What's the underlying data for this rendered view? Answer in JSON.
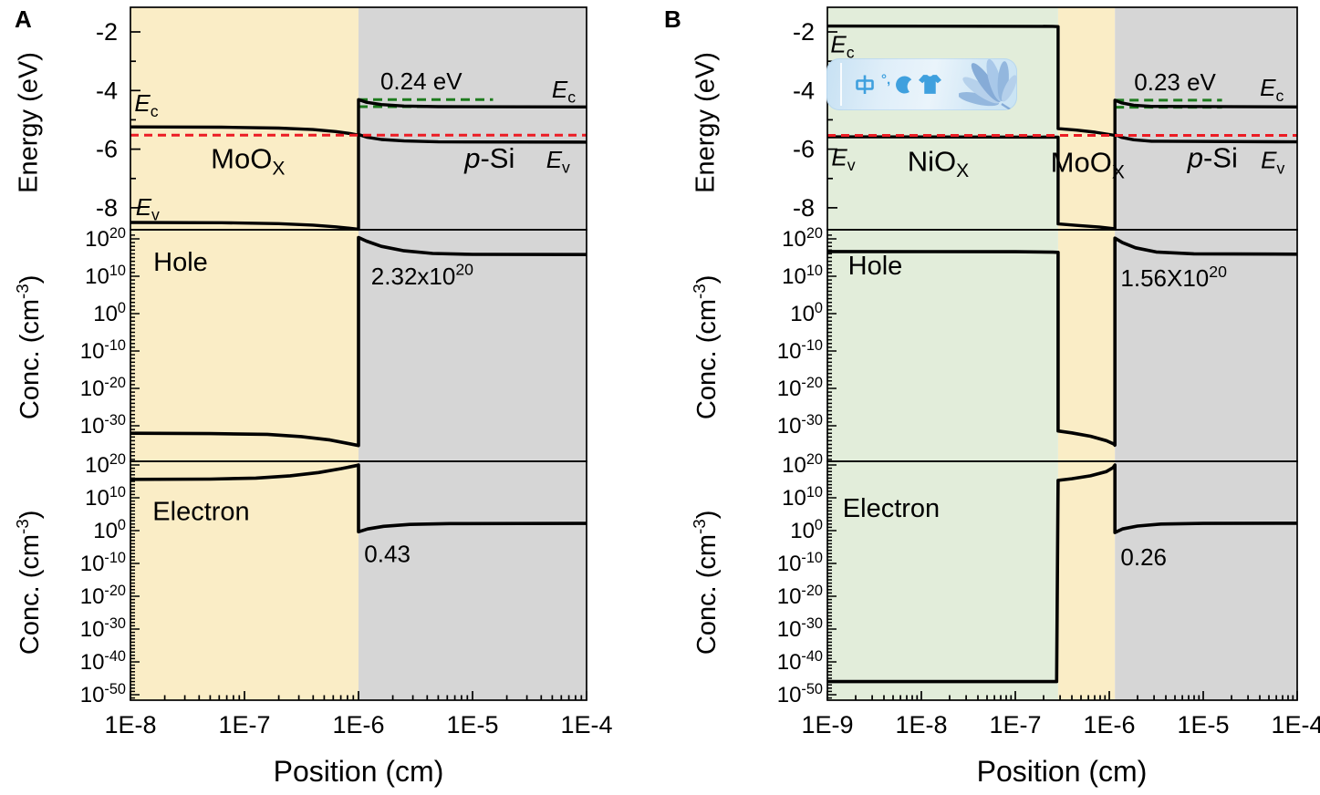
{
  "axis_titles": {
    "energy": "Energy (eV)",
    "conc_prefix": "Conc. (cm",
    "conc_exp": "-3",
    "conc_suffix": ")"
  },
  "watermark": {
    "small_text": "°,",
    "icons": [
      "chinese-translate-icon",
      "degree-comma",
      "crescent-moon-icon",
      "t-shirt-icon",
      "flower-image"
    ]
  },
  "chart_data": [
    {
      "panel_letter": "A",
      "type": "line",
      "xlabel": "Position (cm)",
      "x_tick_labels": [
        "1E-8",
        "1E-7",
        "1E-6",
        "1E-5",
        "1E-4"
      ],
      "x_log_range": [
        -8,
        -4
      ],
      "regions": [
        {
          "name": "MoOx",
          "color": "#FAEDC6",
          "x_log": [
            -8,
            -6
          ]
        },
        {
          "name": "p-Si",
          "color": "#D6D6D6",
          "x_log": [
            -6,
            -4
          ]
        }
      ],
      "energy": {
        "ylabel": "Energy (eV)",
        "y_ticks": [
          -2,
          -4,
          -6,
          -8
        ],
        "y_range": [
          -8.75,
          -1.16
        ],
        "fermi_level_eV": -5.52,
        "fermi_color": "#EC1C24",
        "barrier_color": "#1E7B1E",
        "barrier": {
          "label": "0.24 eV",
          "upper_eV": -4.31,
          "lower_eV": -4.55,
          "x_log": [
            -6,
            -4.82
          ],
          "label_pos": [
            -5.45,
            -3.68
          ]
        },
        "Ec": [
          [
            -8,
            -5.24
          ],
          [
            -7.2,
            -5.25
          ],
          [
            -6.7,
            -5.28
          ],
          [
            -6.4,
            -5.33
          ],
          [
            -6.2,
            -5.4
          ],
          [
            -6.07,
            -5.47
          ],
          [
            -6,
            -5.52
          ],
          [
            -6,
            -4.31
          ],
          [
            -5.93,
            -4.4
          ],
          [
            -5.8,
            -4.48
          ],
          [
            -5.6,
            -4.53
          ],
          [
            -5.3,
            -4.55
          ],
          [
            -4,
            -4.56
          ]
        ],
        "Ev": [
          [
            -8,
            -8.5
          ],
          [
            -7.2,
            -8.51
          ],
          [
            -6.7,
            -8.54
          ],
          [
            -6.4,
            -8.59
          ],
          [
            -6.2,
            -8.65
          ],
          [
            -6.07,
            -8.7
          ],
          [
            -6,
            -8.73
          ],
          [
            -6,
            -5.5
          ],
          [
            -5.93,
            -5.59
          ],
          [
            -5.8,
            -5.67
          ],
          [
            -5.6,
            -5.72
          ],
          [
            -5.3,
            -5.75
          ],
          [
            -4,
            -5.76
          ]
        ],
        "labels": [
          {
            "name": "ec-label-left",
            "parts": [
              {
                "t": "E",
                "i": 1
              },
              {
                "t": "c",
                "sub": 1
              }
            ],
            "pos": [
              -7.86,
              -4.43
            ],
            "size": 26
          },
          {
            "name": "ev-label-left",
            "parts": [
              {
                "t": "E",
                "i": 1
              },
              {
                "t": "v",
                "sub": 1
              }
            ],
            "pos": [
              -7.85,
              -7.97
            ],
            "size": 26
          },
          {
            "name": "region-label-moox",
            "parts": [
              {
                "t": "MoO"
              },
              {
                "t": "X",
                "sub": 1
              }
            ],
            "pos": [
              -6.97,
              -6.32
            ],
            "size": 31
          },
          {
            "name": "region-label-psi",
            "parts": [
              {
                "t": "p",
                "i": 1
              },
              {
                "t": "-Si"
              }
            ],
            "pos": [
              -4.85,
              -6.3
            ],
            "size": 31
          },
          {
            "name": "ev-label-right",
            "parts": [
              {
                "t": "E",
                "i": 1
              },
              {
                "t": "v",
                "sub": 1
              }
            ],
            "pos": [
              -4.25,
              -6.35
            ],
            "size": 26
          },
          {
            "name": "ec-label-right",
            "parts": [
              {
                "t": "E",
                "i": 1
              },
              {
                "t": "c",
                "sub": 1
              }
            ],
            "pos": [
              -4.2,
              -3.95
            ],
            "size": 26
          }
        ]
      },
      "hole": {
        "y_tick_exponents": [
          20,
          10,
          0,
          -10,
          -20,
          -30
        ],
        "y_log_range": [
          -39.5,
          22.4
        ],
        "interface_value": "2.32x10^20",
        "curve": [
          [
            -8,
            -32.0
          ],
          [
            -7.3,
            -32.1
          ],
          [
            -6.8,
            -32.3
          ],
          [
            -6.5,
            -32.9
          ],
          [
            -6.25,
            -33.8
          ],
          [
            -6.08,
            -34.8
          ],
          [
            -6,
            -35.3
          ],
          [
            -6,
            20.37
          ],
          [
            -5.93,
            19.4
          ],
          [
            -5.8,
            18.0
          ],
          [
            -5.6,
            16.8
          ],
          [
            -5.35,
            16.1
          ],
          [
            -5.0,
            15.85
          ],
          [
            -4,
            15.8
          ]
        ],
        "labels": [
          {
            "name": "hole-series-label",
            "parts": [
              {
                "t": "Hole"
              }
            ],
            "pos": [
              -7.56,
              14
            ],
            "size": 29
          },
          {
            "name": "hole-peak-value",
            "parts": [
              {
                "t": "2.32x10"
              },
              {
                "t": "20",
                "sup": 1
              }
            ],
            "pos": [
              -5.89,
              10
            ],
            "anchor": "start",
            "size": 26
          }
        ]
      },
      "electron": {
        "y_tick_exponents": [
          20,
          10,
          0,
          -10,
          -20,
          -30,
          -40,
          -50
        ],
        "y_log_range": [
          -51.7,
          21.1
        ],
        "interface_value": "0.43",
        "curve": [
          [
            -8,
            15.6
          ],
          [
            -7.3,
            15.7
          ],
          [
            -6.9,
            16.0
          ],
          [
            -6.6,
            16.7
          ],
          [
            -6.35,
            17.7
          ],
          [
            -6.15,
            18.9
          ],
          [
            -6.02,
            19.8
          ],
          [
            -6,
            20.0
          ],
          [
            -6,
            -0.37
          ],
          [
            -5.92,
            0.5
          ],
          [
            -5.78,
            1.3
          ],
          [
            -5.55,
            1.9
          ],
          [
            -5.2,
            2.15
          ],
          [
            -4,
            2.2
          ]
        ],
        "labels": [
          {
            "name": "electron-series-label",
            "parts": [
              {
                "t": "Electron"
              }
            ],
            "pos": [
              -7.38,
              6
            ],
            "size": 29
          },
          {
            "name": "electron-interface-value",
            "parts": [
              {
                "t": "0.43"
              }
            ],
            "pos": [
              -5.95,
              -7
            ],
            "anchor": "start",
            "size": 26
          }
        ]
      }
    },
    {
      "panel_letter": "B",
      "type": "line",
      "xlabel": "Position (cm)",
      "x_tick_labels": [
        "1E-9",
        "1E-8",
        "1E-7",
        "1E-6",
        "1E-5",
        "1E-4"
      ],
      "x_log_range": [
        -9,
        -4
      ],
      "regions": [
        {
          "name": "NiOx",
          "color": "#E2EDDA",
          "x_log": [
            -9,
            -6.545
          ]
        },
        {
          "name": "MoOx",
          "color": "#FAEDC6",
          "x_log": [
            -6.545,
            -5.94
          ]
        },
        {
          "name": "p-Si",
          "color": "#D6D6D6",
          "x_log": [
            -5.94,
            -4
          ]
        }
      ],
      "energy": {
        "ylabel": "Energy (eV)",
        "y_ticks": [
          -2,
          -4,
          -6,
          -8
        ],
        "y_range": [
          -8.75,
          -1.16
        ],
        "fermi_level_eV": -5.53,
        "fermi_color": "#EC1C24",
        "barrier_color": "#1E7B1E",
        "barrier": {
          "label": "0.23 eV",
          "upper_eV": -4.33,
          "lower_eV": -4.57,
          "x_log": [
            -5.94,
            -4.8
          ],
          "label_pos": [
            -5.3,
            -3.7
          ]
        },
        "Ec": [
          [
            -9,
            -1.8
          ],
          [
            -6.6,
            -1.81
          ],
          [
            -6.545,
            -1.82
          ],
          [
            -6.545,
            -5.3
          ],
          [
            -6.35,
            -5.35
          ],
          [
            -6.15,
            -5.42
          ],
          [
            -6.0,
            -5.5
          ],
          [
            -5.94,
            -5.53
          ],
          [
            -5.94,
            -4.33
          ],
          [
            -5.87,
            -4.42
          ],
          [
            -5.74,
            -4.5
          ],
          [
            -5.55,
            -4.54
          ],
          [
            -4,
            -4.56
          ]
        ],
        "Ev": [
          [
            -9,
            -5.58
          ],
          [
            -6.6,
            -5.59
          ],
          [
            -6.545,
            -5.59
          ],
          [
            -6.545,
            -8.55
          ],
          [
            -6.35,
            -8.6
          ],
          [
            -6.1,
            -8.66
          ],
          [
            -5.96,
            -8.71
          ],
          [
            -5.94,
            -8.72
          ],
          [
            -5.94,
            -5.5
          ],
          [
            -5.87,
            -5.6
          ],
          [
            -5.74,
            -5.68
          ],
          [
            -5.55,
            -5.73
          ],
          [
            -4,
            -5.75
          ]
        ],
        "labels": [
          {
            "name": "ec-label-left",
            "parts": [
              {
                "t": "E",
                "i": 1
              },
              {
                "t": "c",
                "sub": 1
              }
            ],
            "pos": [
              -8.84,
              -2.42
            ],
            "size": 26
          },
          {
            "name": "ev-label-left",
            "parts": [
              {
                "t": "E",
                "i": 1
              },
              {
                "t": "v",
                "sub": 1
              }
            ],
            "pos": [
              -8.83,
              -6.27
            ],
            "size": 26
          },
          {
            "name": "region-label-niox",
            "parts": [
              {
                "t": "NiO"
              },
              {
                "t": "X",
                "sub": 1
              }
            ],
            "pos": [
              -7.82,
              -6.4
            ],
            "size": 31
          },
          {
            "name": "region-label-moox",
            "parts": [
              {
                "t": "MoO"
              },
              {
                "t": "X",
                "sub": 1
              }
            ],
            "pos": [
              -6.23,
              -6.44
            ],
            "size": 31
          },
          {
            "name": "region-label-psi",
            "parts": [
              {
                "t": "p",
                "i": 1
              },
              {
                "t": "-Si"
              }
            ],
            "pos": [
              -4.9,
              -6.28
            ],
            "size": 31
          },
          {
            "name": "ev-label-right",
            "parts": [
              {
                "t": "E",
                "i": 1
              },
              {
                "t": "v",
                "sub": 1
              }
            ],
            "pos": [
              -4.26,
              -6.37
            ],
            "size": 26
          },
          {
            "name": "ec-label-right",
            "parts": [
              {
                "t": "E",
                "i": 1
              },
              {
                "t": "c",
                "sub": 1
              }
            ],
            "pos": [
              -4.27,
              -3.9
            ],
            "size": 26
          }
        ]
      },
      "hole": {
        "y_tick_exponents": [
          20,
          10,
          0,
          -10,
          -20,
          -30
        ],
        "y_log_range": [
          -39.5,
          22.4
        ],
        "interface_value": "1.56X10^20",
        "curve": [
          [
            -9,
            16.6
          ],
          [
            -7.0,
            16.55
          ],
          [
            -6.6,
            16.45
          ],
          [
            -6.545,
            16.4
          ],
          [
            -6.545,
            -31.4
          ],
          [
            -6.4,
            -31.9
          ],
          [
            -6.2,
            -32.8
          ],
          [
            -6.03,
            -34.0
          ],
          [
            -5.95,
            -34.9
          ],
          [
            -5.94,
            -35.2
          ],
          [
            -5.94,
            20.19
          ],
          [
            -5.86,
            19.0
          ],
          [
            -5.72,
            17.6
          ],
          [
            -5.5,
            16.5
          ],
          [
            -5.1,
            16.0
          ],
          [
            -4,
            15.9
          ]
        ],
        "labels": [
          {
            "name": "hole-series-label",
            "parts": [
              {
                "t": "Hole"
              }
            ],
            "pos": [
              -8.49,
              13
            ],
            "size": 29
          },
          {
            "name": "hole-peak-value",
            "parts": [
              {
                "t": "1.56X10"
              },
              {
                "t": "20",
                "sup": 1
              }
            ],
            "pos": [
              -5.88,
              9.5
            ],
            "anchor": "start",
            "size": 26
          }
        ]
      },
      "electron": {
        "y_tick_exponents": [
          20,
          10,
          0,
          -10,
          -20,
          -30,
          -40,
          -50
        ],
        "y_log_range": [
          -51.7,
          21.1
        ],
        "interface_value": "0.26",
        "curve": [
          [
            -9,
            -46.0
          ],
          [
            -6.56,
            -46.0
          ],
          [
            -6.545,
            15.3
          ],
          [
            -6.4,
            15.8
          ],
          [
            -6.2,
            16.7
          ],
          [
            -6.03,
            18.0
          ],
          [
            -5.96,
            19.2
          ],
          [
            -5.94,
            20.0
          ],
          [
            -5.94,
            -0.59
          ],
          [
            -5.86,
            0.5
          ],
          [
            -5.7,
            1.4
          ],
          [
            -5.45,
            2.0
          ],
          [
            -5.0,
            2.2
          ],
          [
            -4,
            2.25
          ]
        ],
        "labels": [
          {
            "name": "electron-series-label",
            "parts": [
              {
                "t": "Electron"
              }
            ],
            "pos": [
              -8.32,
              7
            ],
            "size": 29
          },
          {
            "name": "electron-interface-value",
            "parts": [
              {
                "t": "0.26"
              }
            ],
            "pos": [
              -5.88,
              -8
            ],
            "anchor": "start",
            "size": 26
          }
        ]
      }
    }
  ]
}
